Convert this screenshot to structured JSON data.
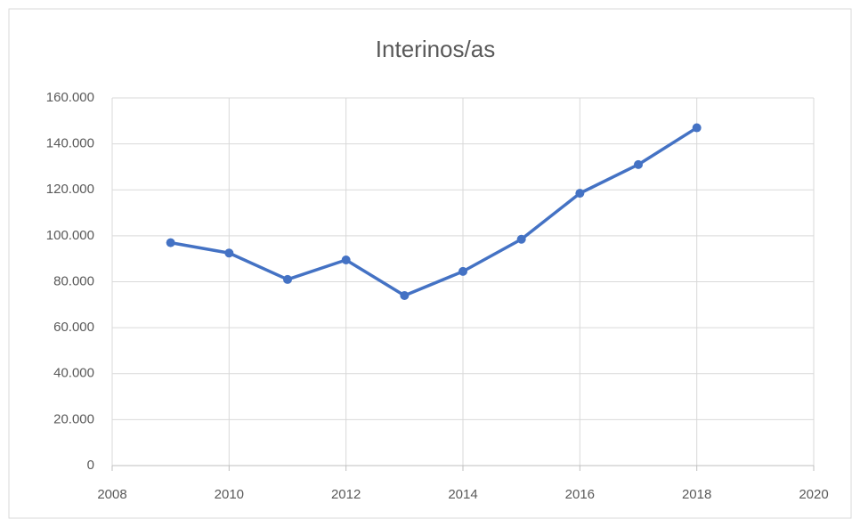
{
  "chart_data": {
    "type": "line",
    "title": "Interinos/as",
    "x": [
      2009,
      2010,
      2011,
      2012,
      2013,
      2014,
      2015,
      2016,
      2017,
      2018
    ],
    "series": [
      {
        "name": "Interinos/as",
        "color": "#4472c4",
        "values": [
          97000,
          92500,
          81000,
          89500,
          74000,
          84500,
          98500,
          118500,
          131000,
          147000
        ]
      }
    ],
    "xlim": [
      2008,
      2020
    ],
    "xticks": [
      2008,
      2010,
      2012,
      2014,
      2016,
      2018,
      2020
    ],
    "ylim": [
      0,
      160000
    ],
    "yticks": [
      0,
      {
        "value": 20000,
        "label": "20.000"
      },
      {
        "value": 40000,
        "label": "40.000"
      },
      {
        "value": 60000,
        "label": "60.000"
      },
      {
        "value": 80000,
        "label": "80.000"
      },
      {
        "value": 100000,
        "label": "100.000"
      },
      {
        "value": 120000,
        "label": "120.000"
      },
      {
        "value": 140000,
        "label": "140.000"
      },
      {
        "value": 160000,
        "label": "160.000"
      }
    ],
    "grid": true
  }
}
